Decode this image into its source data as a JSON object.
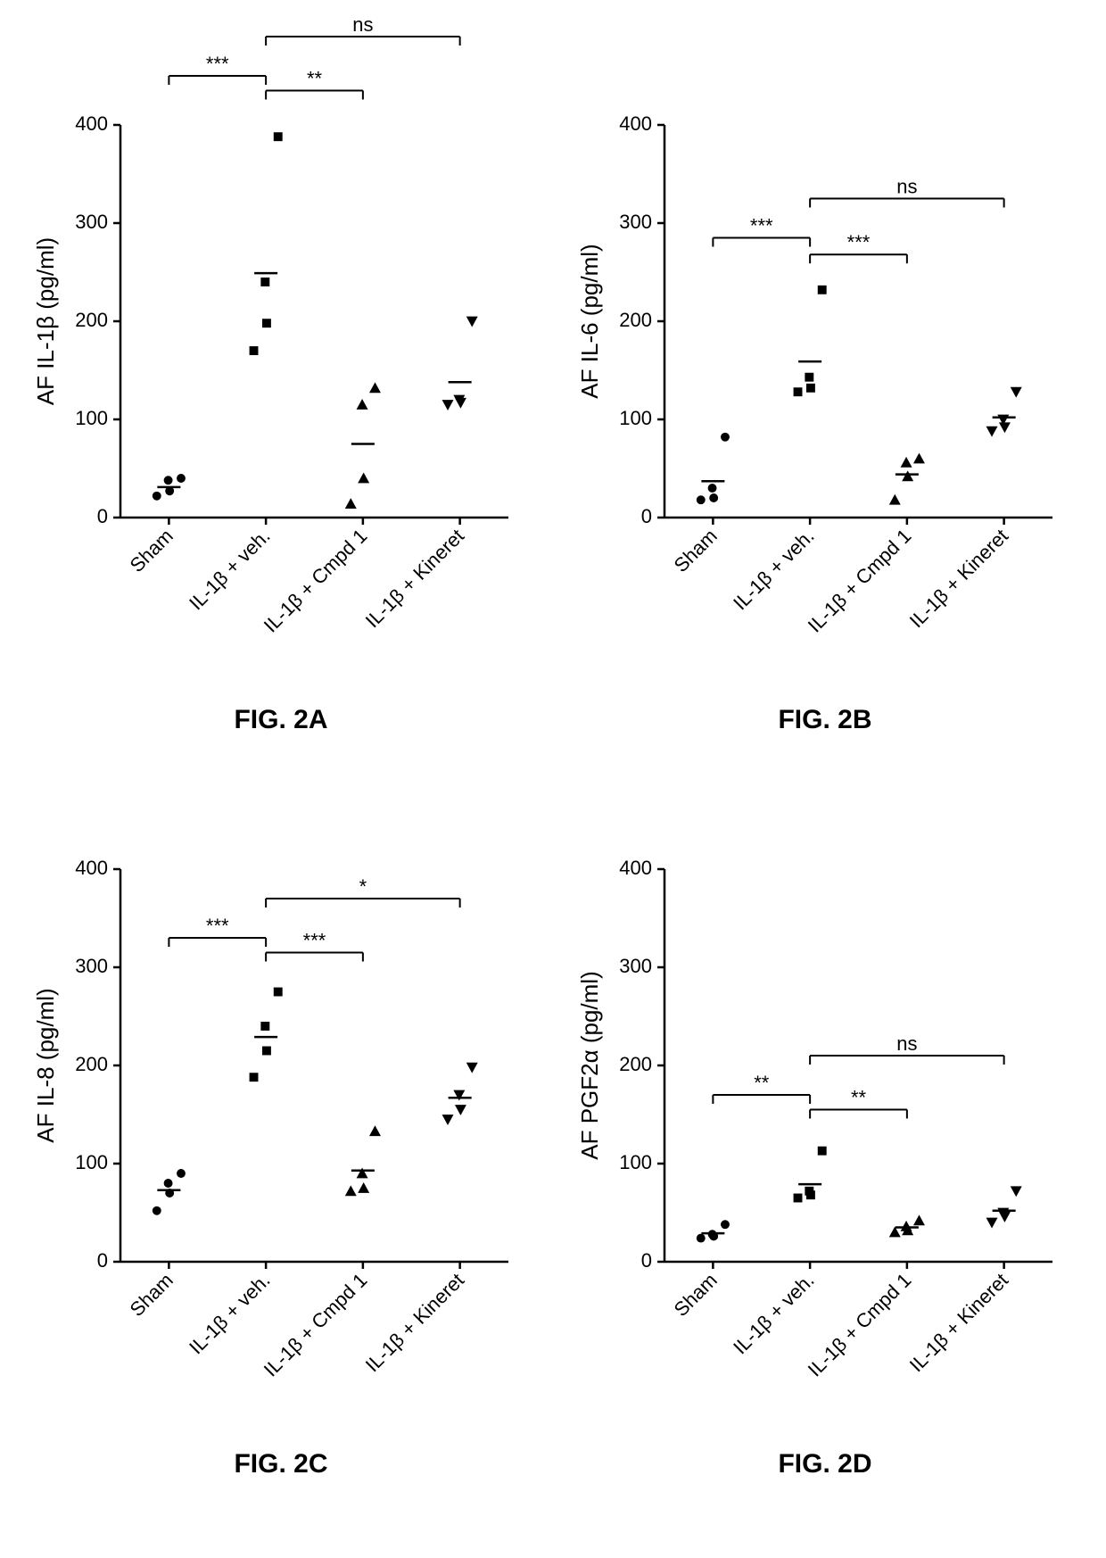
{
  "global": {
    "background_color": "#ffffff",
    "marker_color": "#000000",
    "axis_color": "#000000",
    "text_color": "#000000",
    "font_family": "Arial, Helvetica, sans-serif",
    "ylabel_fontsize": 26,
    "tick_fontsize": 22,
    "xlabel_fontsize": 22,
    "caption_fontsize": 30,
    "sig_fontsize": 22,
    "axis_width": 2.5,
    "tick_length": 8,
    "marker_size": 9,
    "mean_bar_width": 26,
    "mean_bar_stroke": 2.5,
    "bracket_stroke": 2,
    "categories": [
      "Sham",
      "IL-1β + veh.",
      "IL-1β + Cmpd 1",
      "IL-1β + Kineret"
    ],
    "marker_shapes": [
      "circle",
      "square",
      "triangle-up",
      "triangle-down"
    ],
    "ylim": [
      0,
      400
    ],
    "ytick_step": 100,
    "xlabel_rotation": -45
  },
  "panels": [
    {
      "caption": "FIG. 2A",
      "ylabel": "AF IL-1β (pg/ml)",
      "data": [
        [
          22,
          27,
          40,
          38
        ],
        [
          170,
          198,
          240,
          388
        ],
        [
          14,
          40,
          115,
          132
        ],
        [
          115,
          117,
          120,
          200
        ]
      ],
      "means": [
        31,
        249,
        75,
        138
      ],
      "sig": [
        {
          "from": 0,
          "to": 1,
          "label": "***",
          "y": 450
        },
        {
          "from": 1,
          "to": 2,
          "label": "**",
          "y": 435
        },
        {
          "from": 1,
          "to": 3,
          "label": "ns",
          "y": 490
        }
      ]
    },
    {
      "caption": "FIG. 2B",
      "ylabel": "AF IL-6 (pg/ml)",
      "data": [
        [
          18,
          20,
          30,
          82
        ],
        [
          128,
          132,
          143,
          232
        ],
        [
          18,
          42,
          56,
          60
        ],
        [
          88,
          92,
          100,
          128
        ]
      ],
      "means": [
        37,
        159,
        44,
        102
      ],
      "sig": [
        {
          "from": 0,
          "to": 1,
          "label": "***",
          "y": 285
        },
        {
          "from": 1,
          "to": 2,
          "label": "***",
          "y": 268
        },
        {
          "from": 1,
          "to": 3,
          "label": "ns",
          "y": 325
        }
      ]
    },
    {
      "caption": "FIG. 2C",
      "ylabel": "AF IL-8 (pg/ml)",
      "data": [
        [
          52,
          70,
          80,
          90
        ],
        [
          188,
          215,
          240,
          275
        ],
        [
          72,
          75,
          90,
          133
        ],
        [
          145,
          155,
          170,
          198
        ]
      ],
      "means": [
        73,
        229,
        93,
        167
      ],
      "sig": [
        {
          "from": 0,
          "to": 1,
          "label": "***",
          "y": 330
        },
        {
          "from": 1,
          "to": 2,
          "label": "***",
          "y": 315
        },
        {
          "from": 1,
          "to": 3,
          "label": "*",
          "y": 370
        }
      ]
    },
    {
      "caption": "FIG. 2D",
      "ylabel": "AF PGF2α (pg/ml)",
      "data": [
        [
          24,
          26,
          28,
          38
        ],
        [
          65,
          68,
          72,
          113
        ],
        [
          30,
          32,
          36,
          42
        ],
        [
          40,
          46,
          50,
          72
        ]
      ],
      "means": [
        29,
        79,
        35,
        52
      ],
      "sig": [
        {
          "from": 0,
          "to": 1,
          "label": "**",
          "y": 170
        },
        {
          "from": 1,
          "to": 2,
          "label": "**",
          "y": 155
        },
        {
          "from": 1,
          "to": 3,
          "label": "ns",
          "y": 210
        }
      ]
    }
  ]
}
